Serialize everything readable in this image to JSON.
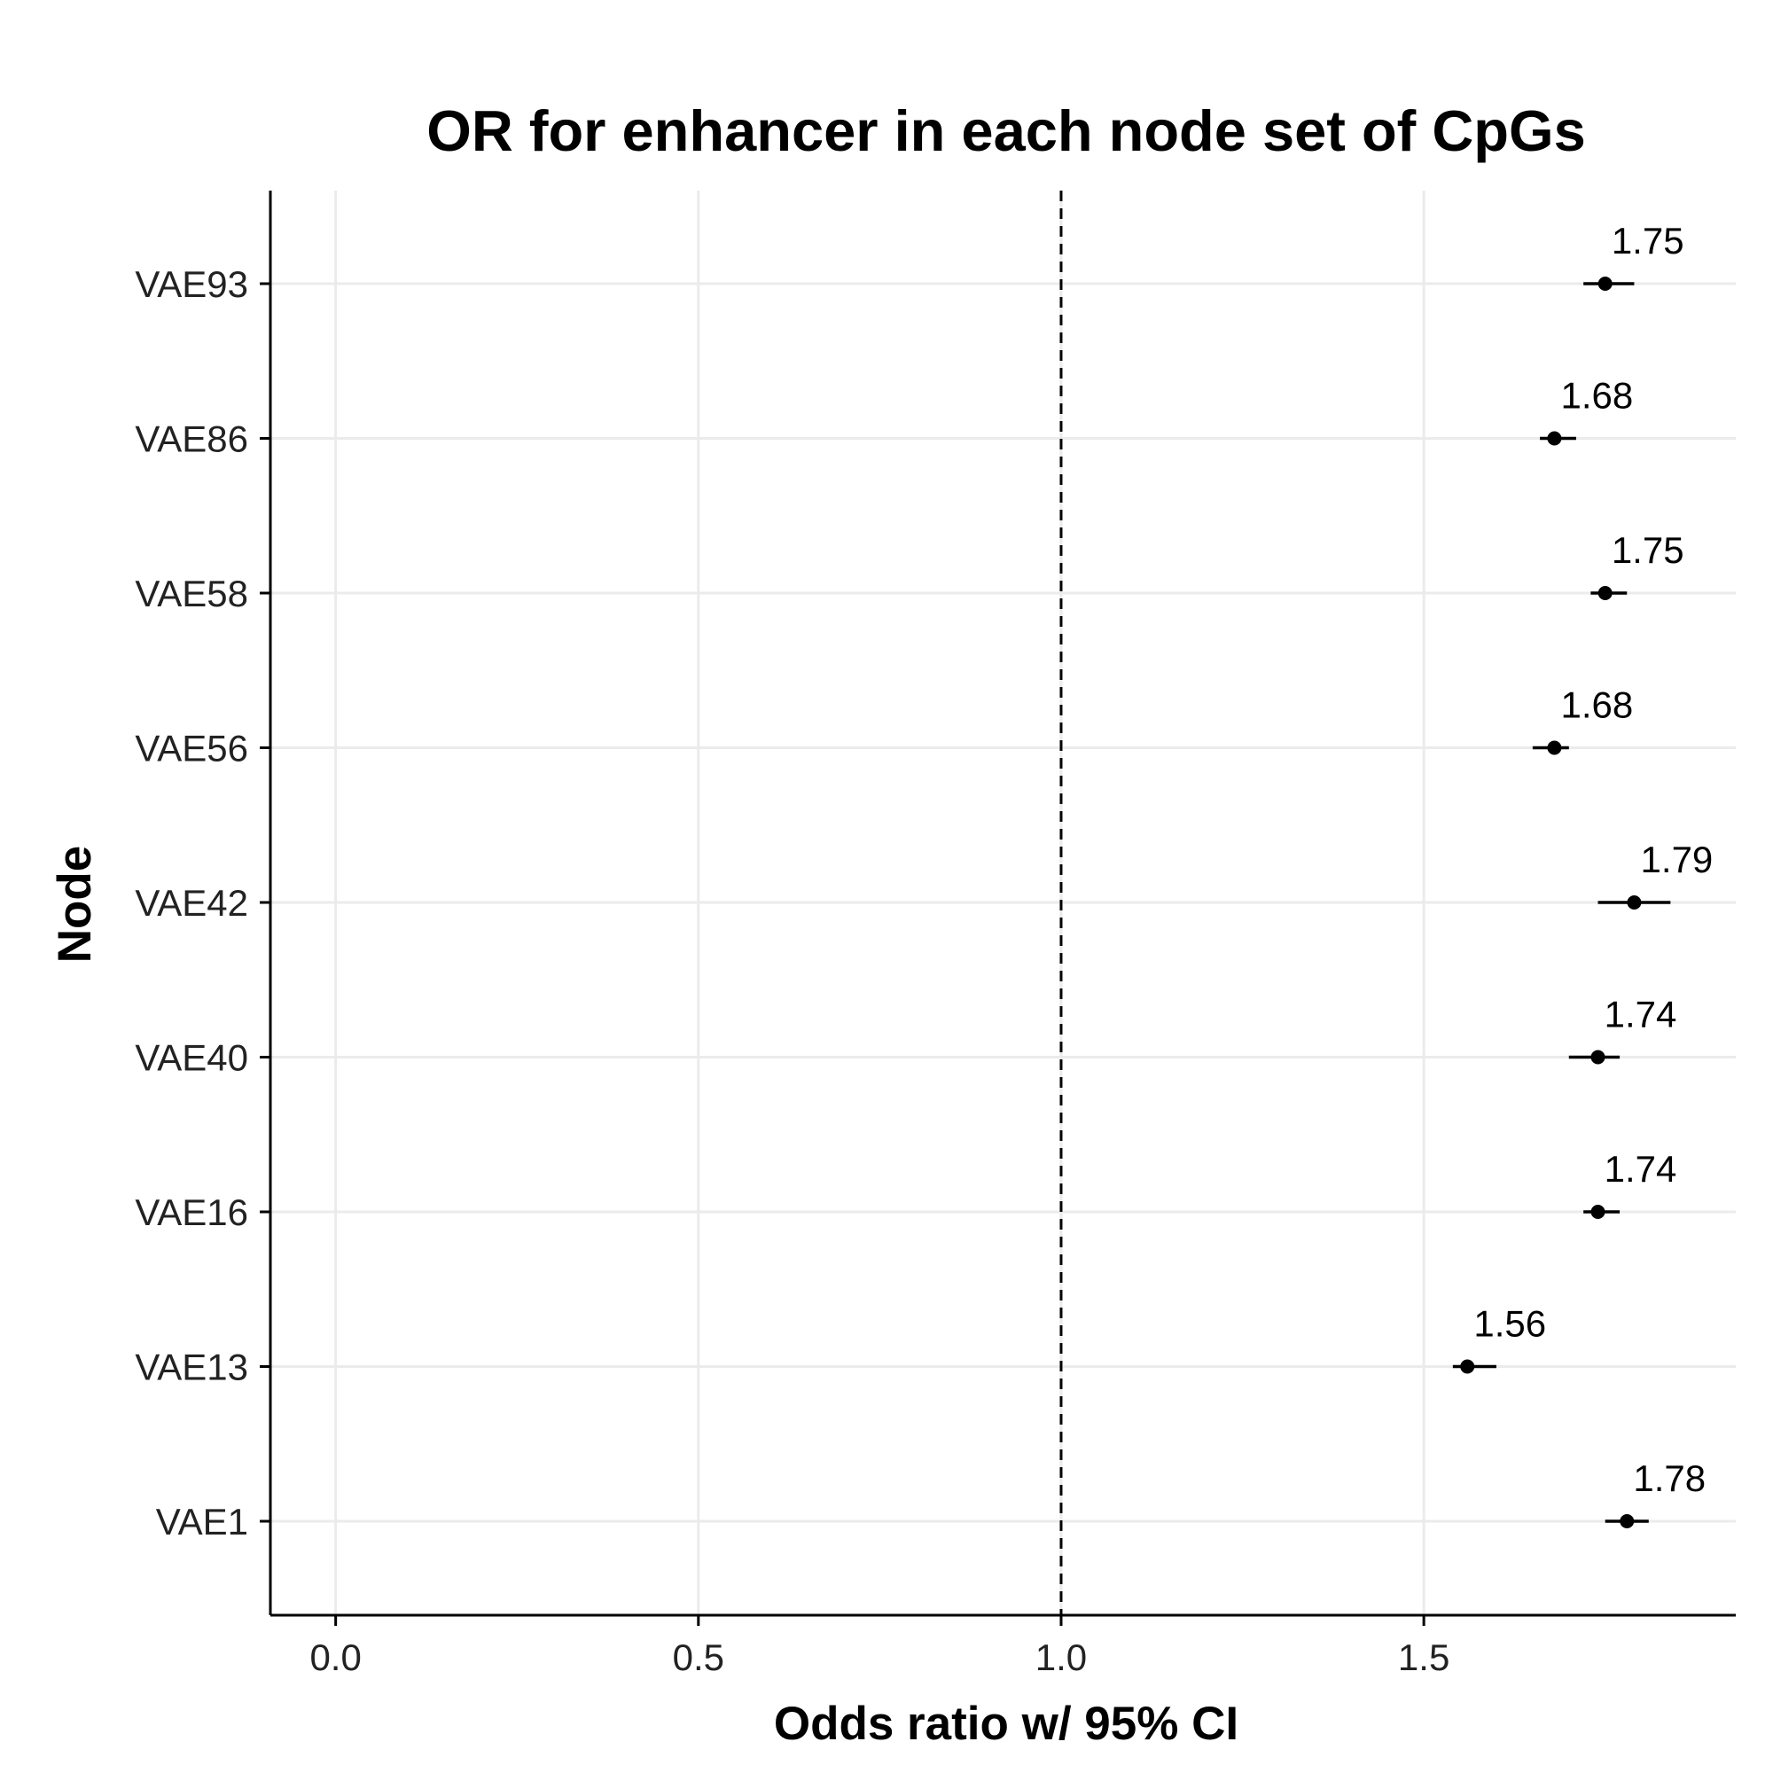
{
  "chart_data": {
    "type": "scatter",
    "subtype": "forest-plot",
    "title": "OR for enhancer in each node set of CpGs",
    "xlabel": "Odds ratio w/ 95% CI",
    "ylabel": "Node",
    "xlim": [
      -0.09,
      1.93
    ],
    "xticks": [
      0.0,
      0.5,
      1.0,
      1.5
    ],
    "xtick_labels": [
      "0.0",
      "0.5",
      "1.0",
      "1.5"
    ],
    "reference_line": 1.0,
    "grid": true,
    "categories": [
      "VAE93",
      "VAE86",
      "VAE58",
      "VAE56",
      "VAE42",
      "VAE40",
      "VAE16",
      "VAE13",
      "VAE1"
    ],
    "values": [
      1.75,
      1.68,
      1.75,
      1.68,
      1.79,
      1.74,
      1.74,
      1.56,
      1.78
    ],
    "ci_lower": [
      1.72,
      1.66,
      1.73,
      1.65,
      1.74,
      1.7,
      1.72,
      1.54,
      1.75
    ],
    "ci_upper": [
      1.79,
      1.71,
      1.78,
      1.7,
      1.84,
      1.77,
      1.77,
      1.6,
      1.81
    ],
    "labels": [
      "1.75",
      "1.68",
      "1.75",
      "1.68",
      "1.79",
      "1.74",
      "1.74",
      "1.56",
      "1.78"
    ],
    "colors": {
      "point": "#000000",
      "grid": "#ebebeb",
      "axis": "#000000",
      "reference": "#000000"
    }
  }
}
